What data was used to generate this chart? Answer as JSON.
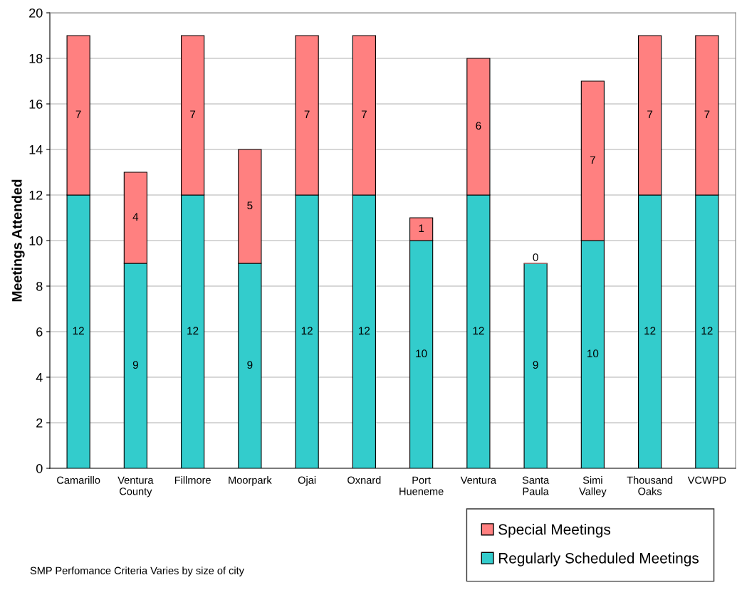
{
  "chart_data": {
    "type": "bar",
    "stacked": true,
    "ylabel": "Meetings Attended",
    "categories": [
      "Camarillo",
      "Ventura\nCounty",
      "Fillmore",
      "Moorpark",
      "Ojai",
      "Oxnard",
      "Port\nHueneme",
      "Ventura",
      "Santa\nPaula",
      "Simi\nValley",
      "Thousand\nOaks",
      "VCWPD"
    ],
    "series": [
      {
        "name": "Regularly Scheduled Meetings",
        "color": "#33cccc",
        "values": [
          12,
          9,
          12,
          9,
          12,
          12,
          10,
          12,
          9,
          10,
          12,
          12
        ]
      },
      {
        "name": "Special Meetings",
        "color": "#ff8080",
        "values": [
          7,
          4,
          7,
          5,
          7,
          7,
          1,
          6,
          0,
          7,
          7,
          7
        ]
      }
    ],
    "ylim": [
      0,
      20
    ],
    "yticks": [
      0,
      2,
      4,
      6,
      8,
      10,
      12,
      14,
      16,
      18,
      20
    ],
    "grid": "y",
    "legend": "bottom right",
    "data_labels": true,
    "annotations": [
      "SMP Perfomance Criteria Varies by size of city"
    ]
  }
}
